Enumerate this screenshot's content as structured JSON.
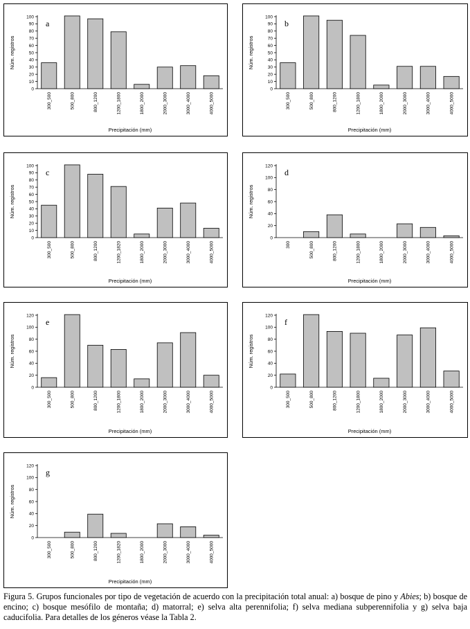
{
  "figure": {
    "caption": {
      "part1": "Figura 5. Grupos funcionales por tipo de vegetación de acuerdo con la precipitación total anual: a) bosque de pino y ",
      "italic": "Abies",
      "part2": "; b) bosque de encino; c) bosque mesófilo de montaña; d) matorral; e) selva alta perennifolia; f) selva mediana subperennifolia y g) selva baja caducifolia. Para detalles de los géneros véase la Tabla 2."
    }
  },
  "chart_data": [
    {
      "type": "bar",
      "panel": "a",
      "categories": [
        "300_500",
        "500_800",
        "800_1200",
        "1200_1800",
        "1800_2000",
        "2000_3000",
        "3000_4000",
        "4000_5000"
      ],
      "values": [
        36,
        101,
        97,
        79,
        6,
        30,
        32,
        18
      ],
      "ylim": [
        0,
        100
      ],
      "yticks": [
        0,
        10,
        20,
        30,
        40,
        50,
        60,
        70,
        80,
        90,
        100
      ],
      "ylabel": "Núm. registros",
      "xlabel": "Precipitación (mm)"
    },
    {
      "type": "bar",
      "panel": "b",
      "categories": [
        "300_500",
        "500_800",
        "800_1200",
        "1200_1800",
        "1800_2000",
        "2000_3000",
        "3000_4000",
        "4000_5000"
      ],
      "values": [
        36,
        101,
        95,
        74,
        5,
        31,
        31,
        17
      ],
      "ylim": [
        0,
        100
      ],
      "yticks": [
        0,
        10,
        20,
        30,
        40,
        50,
        60,
        70,
        80,
        90,
        100
      ],
      "ylabel": "Núm. registros",
      "xlabel": "Precipitación (mm)"
    },
    {
      "type": "bar",
      "panel": "c",
      "categories": [
        "300_500",
        "500_800",
        "800_1200",
        "1200_1820",
        "1800_2000",
        "2000_3000",
        "3000_4000",
        "4000_5000"
      ],
      "values": [
        45,
        101,
        88,
        71,
        5,
        41,
        48,
        13
      ],
      "ylim": [
        0,
        100
      ],
      "yticks": [
        0,
        10,
        20,
        30,
        40,
        50,
        60,
        70,
        80,
        90,
        100
      ],
      "ylabel": "Núm. registros",
      "xlabel": "Precipitación (mm)"
    },
    {
      "type": "bar",
      "panel": "d",
      "categories": [
        "300",
        "500_800",
        "800_1200",
        "1200_1800",
        "1800_2000",
        "2000_3000",
        "3000_4000",
        "4000_5000"
      ],
      "values": [
        0,
        10,
        38,
        6,
        0,
        23,
        17,
        3
      ],
      "ylim": [
        0,
        120
      ],
      "yticks": [
        0,
        20,
        40,
        60,
        80,
        100,
        120
      ],
      "ylabel": "Núm. registros",
      "xlabel": "Precipitación (mm)"
    },
    {
      "type": "bar",
      "panel": "e",
      "categories": [
        "300_500",
        "500_800",
        "800_1200",
        "1200_1800",
        "1800_2000",
        "2000_3000",
        "3000_4000",
        "4000_5000"
      ],
      "values": [
        16,
        121,
        70,
        63,
        14,
        74,
        91,
        20
      ],
      "ylim": [
        0,
        120
      ],
      "yticks": [
        0,
        20,
        40,
        60,
        80,
        100,
        120
      ],
      "ylabel": "Núm. registros",
      "xlabel": "Precipitación (mm)"
    },
    {
      "type": "bar",
      "panel": "f",
      "categories": [
        "300_500",
        "500_800",
        "800_1200",
        "1200_1800",
        "1800_2000",
        "2000_3000",
        "3000_4000",
        "4000_5000"
      ],
      "values": [
        22,
        121,
        93,
        90,
        15,
        87,
        99,
        27
      ],
      "ylim": [
        0,
        120
      ],
      "yticks": [
        0,
        20,
        40,
        60,
        80,
        100,
        120
      ],
      "ylabel": "Núm. registros",
      "xlabel": "Precipitación (mm)"
    },
    {
      "type": "bar",
      "panel": "g",
      "categories": [
        "300_500",
        "500_800",
        "800_1200",
        "1200_1820",
        "1800_2000",
        "2000_3000",
        "3000_4000",
        "4000_5000"
      ],
      "values": [
        0,
        9,
        39,
        7,
        0,
        23,
        18,
        4
      ],
      "ylim": [
        0,
        120
      ],
      "yticks": [
        0,
        20,
        40,
        60,
        80,
        100,
        120
      ],
      "ylabel": "Núm. registros",
      "xlabel": "Precipitación (mm)"
    }
  ]
}
